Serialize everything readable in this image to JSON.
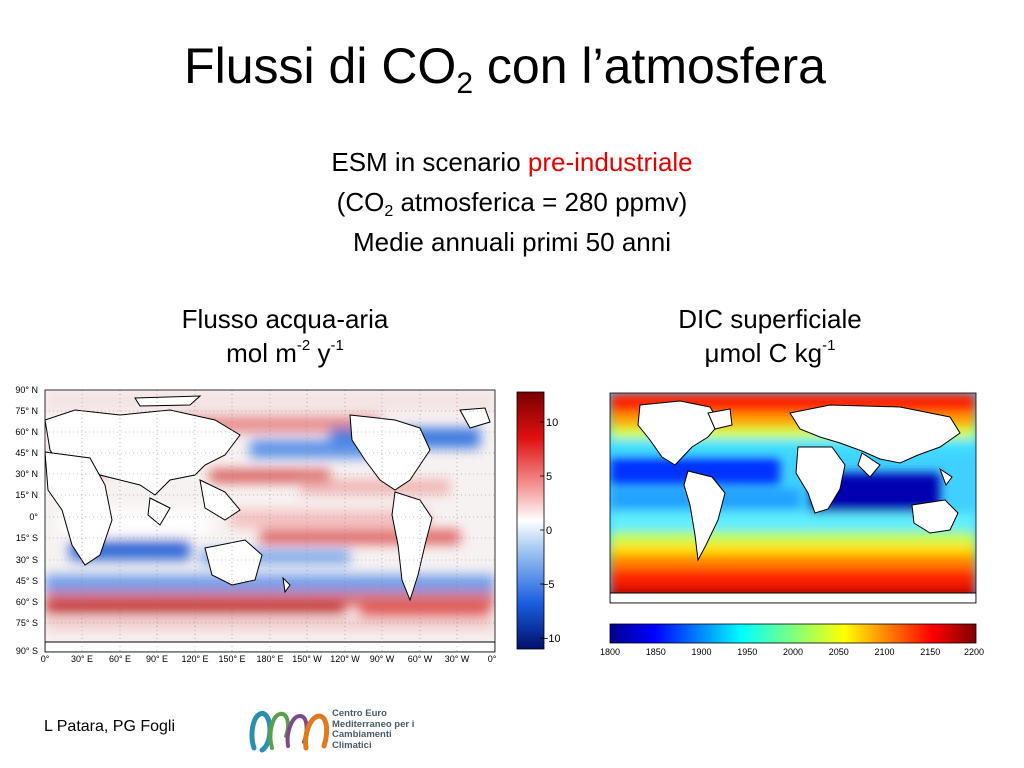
{
  "title": {
    "main": "Flussi di CO",
    "sub": "2",
    "rest": " con l’atmosfera"
  },
  "subtitle": {
    "line1_prefix": "ESM in scenario ",
    "line1_accent": "pre-industriale",
    "line2_prefix": "(CO",
    "line2_sub": "2",
    "line2_rest": " atmosferica = 280 ppmv)",
    "line3": "Medie annuali primi 50 anni",
    "accent_color": "#e60000"
  },
  "left_panel": {
    "label_line1": "Flusso acqua-aria",
    "label_unit_a": "mol m",
    "label_unit_a_sup": "-2",
    "label_unit_b": " y",
    "label_unit_b_sup": "-1",
    "lat_labels": [
      "90° N",
      "75° N",
      "60° N",
      "45° N",
      "30° N",
      "15° N",
      "0°",
      "15° S",
      "30° S",
      "45° S",
      "60° S",
      "75° S",
      "90° S"
    ],
    "lon_labels": [
      "0°",
      "30° E",
      "60° E",
      "90° E",
      "120° E",
      "150° E",
      "180° E",
      "150° W",
      "120° W",
      "90° W",
      "60° W",
      "30° W",
      "0°"
    ],
    "colorbar_ticks": [
      "10",
      "5",
      "0",
      "−5",
      "−10"
    ]
  },
  "right_panel": {
    "label_line1": "DIC superficiale",
    "label_mu": "μ",
    "label_unit": "mol C kg",
    "label_unit_sup": "-1",
    "colorbar_ticks": [
      "1800",
      "1850",
      "1900",
      "1950",
      "2000",
      "2050",
      "2100",
      "2150",
      "2200"
    ]
  },
  "footer": {
    "author": "L Patara, PG Fogli",
    "logo_lines": [
      "Centro Euro",
      "Mediterraneo per i",
      "Cambiamenti",
      "Climatici"
    ],
    "logo_icon": "cmcc-logo-icon"
  }
}
